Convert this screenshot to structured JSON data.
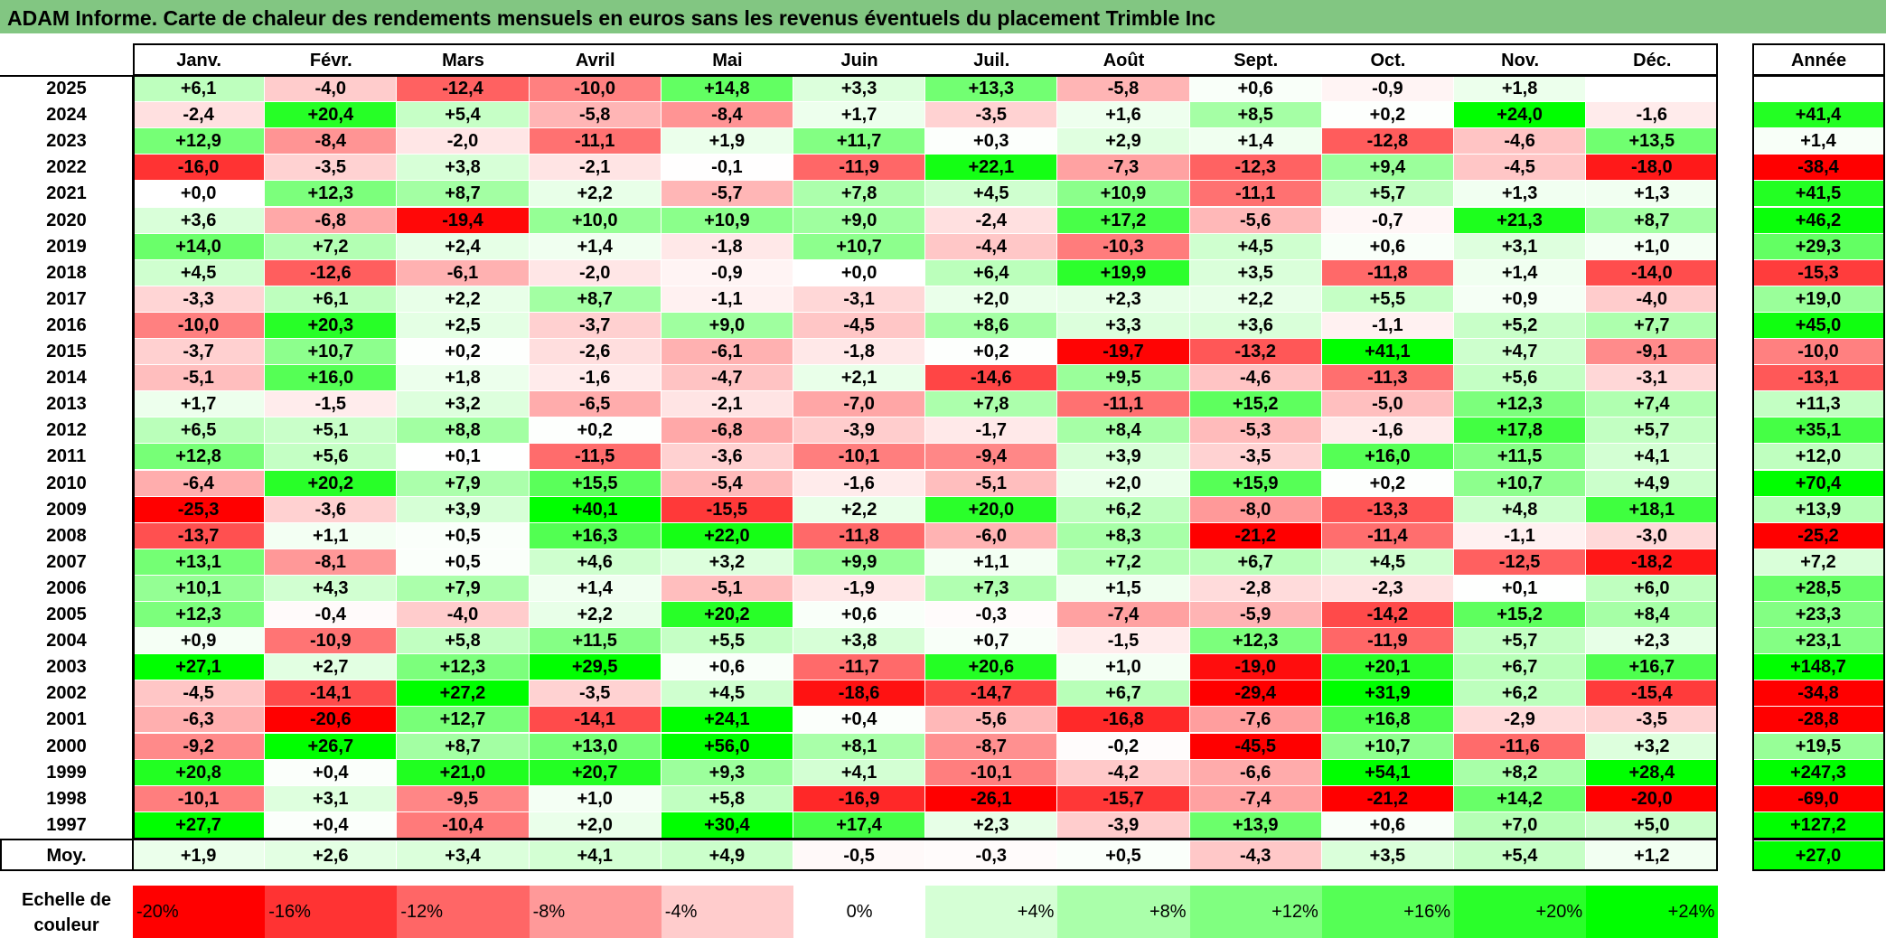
{
  "title": "ADAM Informe. Carte de chaleur des rendements mensuels en euros sans les revenus éventuels du placement Trimble Inc",
  "chart_data": {
    "type": "heatmap",
    "title": "ADAM Informe. Carte de chaleur des rendements mensuels en euros sans les revenus éventuels du placement Trimble Inc",
    "columns": [
      "Janv.",
      "Févr.",
      "Mars",
      "Avril",
      "Mai",
      "Juin",
      "Juil.",
      "Août",
      "Sept.",
      "Oct.",
      "Nov.",
      "Déc."
    ],
    "annual_header": "Année",
    "average_label": "Moy.",
    "rows": [
      {
        "year": "2025",
        "values": [
          "+6,1",
          "-4,0",
          "-12,4",
          "-10,0",
          "+14,8",
          "+3,3",
          "+13,3",
          "-5,8",
          "+0,6",
          "-0,9",
          "+1,8",
          ""
        ],
        "annual": ""
      },
      {
        "year": "2024",
        "values": [
          "-2,4",
          "+20,4",
          "+5,4",
          "-5,8",
          "-8,4",
          "+1,7",
          "-3,5",
          "+1,6",
          "+8,5",
          "+0,2",
          "+24,0",
          "-1,6"
        ],
        "annual": "+41,4"
      },
      {
        "year": "2023",
        "values": [
          "+12,9",
          "-8,4",
          "-2,0",
          "-11,1",
          "+1,9",
          "+11,7",
          "+0,3",
          "+2,9",
          "+1,4",
          "-12,8",
          "-4,6",
          "+13,5"
        ],
        "annual": "+1,4"
      },
      {
        "year": "2022",
        "values": [
          "-16,0",
          "-3,5",
          "+3,8",
          "-2,1",
          "-0,1",
          "-11,9",
          "+22,1",
          "-7,3",
          "-12,3",
          "+9,4",
          "-4,5",
          "-18,0"
        ],
        "annual": "-38,4"
      },
      {
        "year": "2021",
        "values": [
          "+0,0",
          "+12,3",
          "+8,7",
          "+2,2",
          "-5,7",
          "+7,8",
          "+4,5",
          "+10,9",
          "-11,1",
          "+5,7",
          "+1,3",
          "+1,3"
        ],
        "annual": "+41,5"
      },
      {
        "year": "2020",
        "values": [
          "+3,6",
          "-6,8",
          "-19,4",
          "+10,0",
          "+10,9",
          "+9,0",
          "-2,4",
          "+17,2",
          "-5,6",
          "-0,7",
          "+21,3",
          "+8,7"
        ],
        "annual": "+46,2"
      },
      {
        "year": "2019",
        "values": [
          "+14,0",
          "+7,2",
          "+2,4",
          "+1,4",
          "-1,8",
          "+10,7",
          "-4,4",
          "-10,3",
          "+4,5",
          "+0,6",
          "+3,1",
          "+1,0"
        ],
        "annual": "+29,3"
      },
      {
        "year": "2018",
        "values": [
          "+4,5",
          "-12,6",
          "-6,1",
          "-2,0",
          "-0,9",
          "+0,0",
          "+6,4",
          "+19,9",
          "+3,5",
          "-11,8",
          "+1,4",
          "-14,0"
        ],
        "annual": "-15,3"
      },
      {
        "year": "2017",
        "values": [
          "-3,3",
          "+6,1",
          "+2,2",
          "+8,7",
          "-1,1",
          "-3,1",
          "+2,0",
          "+2,3",
          "+2,2",
          "+5,5",
          "+0,9",
          "-4,0"
        ],
        "annual": "+19,0"
      },
      {
        "year": "2016",
        "values": [
          "-10,0",
          "+20,3",
          "+2,5",
          "-3,7",
          "+9,0",
          "-4,5",
          "+8,6",
          "+3,3",
          "+3,6",
          "-1,1",
          "+5,2",
          "+7,7"
        ],
        "annual": "+45,0"
      },
      {
        "year": "2015",
        "values": [
          "-3,7",
          "+10,7",
          "+0,2",
          "-2,6",
          "-6,1",
          "-1,8",
          "+0,2",
          "-19,7",
          "-13,2",
          "+41,1",
          "+4,7",
          "-9,1"
        ],
        "annual": "-10,0"
      },
      {
        "year": "2014",
        "values": [
          "-5,1",
          "+16,0",
          "+1,8",
          "-1,6",
          "-4,7",
          "+2,1",
          "-14,6",
          "+9,5",
          "-4,6",
          "-11,3",
          "+5,6",
          "-3,1"
        ],
        "annual": "-13,1"
      },
      {
        "year": "2013",
        "values": [
          "+1,7",
          "-1,5",
          "+3,2",
          "-6,5",
          "-2,1",
          "-7,0",
          "+7,8",
          "-11,1",
          "+15,2",
          "-5,0",
          "+12,3",
          "+7,4"
        ],
        "annual": "+11,3"
      },
      {
        "year": "2012",
        "values": [
          "+6,5",
          "+5,1",
          "+8,8",
          "+0,2",
          "-6,8",
          "-3,9",
          "-1,7",
          "+8,4",
          "-5,3",
          "-1,6",
          "+17,8",
          "+5,7"
        ],
        "annual": "+35,1"
      },
      {
        "year": "2011",
        "values": [
          "+12,8",
          "+5,6",
          "+0,1",
          "-11,5",
          "-3,6",
          "-10,1",
          "-9,4",
          "+3,9",
          "-3,5",
          "+16,0",
          "+11,5",
          "+4,1"
        ],
        "annual": "+12,0"
      },
      {
        "year": "2010",
        "values": [
          "-6,4",
          "+20,2",
          "+7,9",
          "+15,5",
          "-5,4",
          "-1,6",
          "-5,1",
          "+2,0",
          "+15,9",
          "+0,2",
          "+10,7",
          "+4,9"
        ],
        "annual": "+70,4"
      },
      {
        "year": "2009",
        "values": [
          "-25,3",
          "-3,6",
          "+3,9",
          "+40,1",
          "-15,5",
          "+2,2",
          "+20,0",
          "+6,2",
          "-8,0",
          "-13,3",
          "+4,8",
          "+18,1"
        ],
        "annual": "+13,9"
      },
      {
        "year": "2008",
        "values": [
          "-13,7",
          "+1,1",
          "+0,5",
          "+16,3",
          "+22,0",
          "-11,8",
          "-6,0",
          "+8,3",
          "-21,2",
          "-11,4",
          "-1,1",
          "-3,0"
        ],
        "annual": "-25,2"
      },
      {
        "year": "2007",
        "values": [
          "+13,1",
          "-8,1",
          "+0,5",
          "+4,6",
          "+3,2",
          "+9,9",
          "+1,1",
          "+7,2",
          "+6,7",
          "+4,5",
          "-12,5",
          "-18,2"
        ],
        "annual": "+7,2"
      },
      {
        "year": "2006",
        "values": [
          "+10,1",
          "+4,3",
          "+7,9",
          "+1,4",
          "-5,1",
          "-1,9",
          "+7,3",
          "+1,5",
          "-2,8",
          "-2,3",
          "+0,1",
          "+6,0"
        ],
        "annual": "+28,5"
      },
      {
        "year": "2005",
        "values": [
          "+12,3",
          "-0,4",
          "-4,0",
          "+2,2",
          "+20,2",
          "+0,6",
          "-0,3",
          "-7,4",
          "-5,9",
          "-14,2",
          "+15,2",
          "+8,4"
        ],
        "annual": "+23,3"
      },
      {
        "year": "2004",
        "values": [
          "+0,9",
          "-10,9",
          "+5,8",
          "+11,5",
          "+5,5",
          "+3,8",
          "+0,7",
          "-1,5",
          "+12,3",
          "-11,9",
          "+5,7",
          "+2,3"
        ],
        "annual": "+23,1"
      },
      {
        "year": "2003",
        "values": [
          "+27,1",
          "+2,7",
          "+12,3",
          "+29,5",
          "+0,6",
          "-11,7",
          "+20,6",
          "+1,0",
          "-19,0",
          "+20,1",
          "+6,7",
          "+16,7"
        ],
        "annual": "+148,7"
      },
      {
        "year": "2002",
        "values": [
          "-4,5",
          "-14,1",
          "+27,2",
          "-3,5",
          "+4,5",
          "-18,6",
          "-14,7",
          "+6,7",
          "-29,4",
          "+31,9",
          "+6,2",
          "-15,4"
        ],
        "annual": "-34,8"
      },
      {
        "year": "2001",
        "values": [
          "-6,3",
          "-20,6",
          "+12,7",
          "-14,1",
          "+24,1",
          "+0,4",
          "-5,6",
          "-16,8",
          "-7,6",
          "+16,8",
          "-2,9",
          "-3,5"
        ],
        "annual": "-28,8"
      },
      {
        "year": "2000",
        "values": [
          "-9,2",
          "+26,7",
          "+8,7",
          "+13,0",
          "+56,0",
          "+8,1",
          "-8,7",
          "-0,2",
          "-45,5",
          "+10,7",
          "-11,6",
          "+3,2"
        ],
        "annual": "+19,5"
      },
      {
        "year": "1999",
        "values": [
          "+20,8",
          "+0,4",
          "+21,0",
          "+20,7",
          "+9,3",
          "+4,1",
          "-10,1",
          "-4,2",
          "-6,6",
          "+54,1",
          "+8,2",
          "+28,4"
        ],
        "annual": "+247,3"
      },
      {
        "year": "1998",
        "values": [
          "-10,1",
          "+3,1",
          "-9,5",
          "+1,0",
          "+5,8",
          "-16,9",
          "-26,1",
          "-15,7",
          "-7,4",
          "-21,2",
          "+14,2",
          "-20,0"
        ],
        "annual": "-69,0"
      },
      {
        "year": "1997",
        "values": [
          "+27,7",
          "+0,4",
          "-10,4",
          "+2,0",
          "+30,4",
          "+17,4",
          "+2,3",
          "-3,9",
          "+13,9",
          "+0,6",
          "+7,0",
          "+5,0"
        ],
        "annual": "+127,2"
      }
    ],
    "average": {
      "values": [
        "+1,9",
        "+2,6",
        "+3,4",
        "+4,1",
        "+4,9",
        "-0,5",
        "-0,3",
        "+0,5",
        "-4,3",
        "+3,5",
        "+5,4",
        "+1,2"
      ],
      "annual": "+27,0"
    },
    "color_scale": {
      "label_line1": "Echelle de",
      "label_line2": "couleur",
      "stops": [
        "-20%",
        "-16%",
        "-12%",
        "-8%",
        "-4%",
        "0%",
        "+4%",
        "+8%",
        "+12%",
        "+16%",
        "+20%",
        "+24%"
      ]
    },
    "colors": {
      "negative": "#ff0000",
      "zero": "#ffffff",
      "positive": "#00ff00",
      "title_bar": "#82c682"
    }
  }
}
